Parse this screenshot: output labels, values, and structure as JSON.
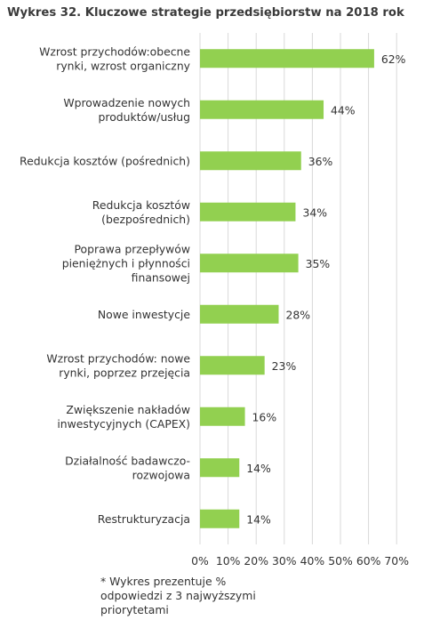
{
  "title": "Wykres 32. Kluczowe strategie przedsiębiorstw na 2018 rok",
  "footnote": [
    "* Wykres prezentuje %",
    "odpowiedzi z 3 najwyższymi",
    "priorytetami"
  ],
  "colors": {
    "bar": "#92d050",
    "grid": "#d9d9d9",
    "text": "#333333"
  },
  "chart_data": {
    "type": "bar",
    "orientation": "horizontal",
    "title": "Wykres 32. Kluczowe strategie przedsiębiorstw na 2018 rok",
    "categories": [
      [
        "Wzrost przychodów:obecne",
        "rynki, wzrost organiczny"
      ],
      [
        "Wprowadzenie nowych",
        "produktów/usług"
      ],
      [
        "Redukcja kosztów (pośrednich)"
      ],
      [
        "Redukcja kosztów",
        "(bezpośrednich)"
      ],
      [
        "Poprawa przepływów",
        "pieniężnych i płynności",
        "finansowej"
      ],
      [
        "Nowe inwestycje"
      ],
      [
        "Wzrost przychodów: nowe",
        "rynki, poprzez przejęcia"
      ],
      [
        "Zwiększenie nakładów",
        "inwestycyjnych (CAPEX)"
      ],
      [
        "Działalność badawczo-",
        "rozwojowa"
      ],
      [
        "Restrukturyzacja"
      ]
    ],
    "values": [
      62,
      44,
      36,
      34,
      35,
      28,
      23,
      16,
      14,
      14
    ],
    "data_labels": [
      "62%",
      "44%",
      "36%",
      "34%",
      "35%",
      "28%",
      "23%",
      "16%",
      "14%",
      "14%"
    ],
    "xlim": [
      0,
      70
    ],
    "xticks": [
      "0%",
      "10%",
      "20%",
      "30%",
      "40%",
      "50%",
      "60%",
      "70%"
    ],
    "grid": true,
    "legend": "none"
  }
}
